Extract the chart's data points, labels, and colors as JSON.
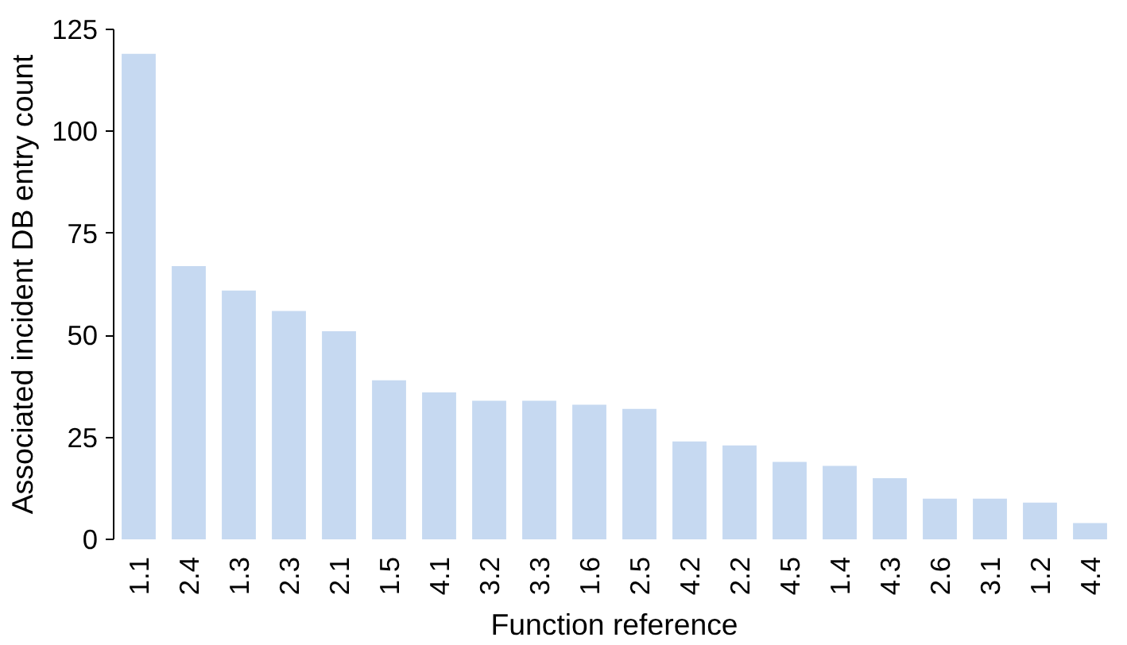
{
  "chart_data": {
    "type": "bar",
    "xlabel": "Function reference",
    "ylabel": "Associated incident DB entry count",
    "categories": [
      "1.1",
      "2.4",
      "1.3",
      "2.3",
      "2.1",
      "1.5",
      "4.1",
      "3.2",
      "3.3",
      "1.6",
      "2.5",
      "4.2",
      "2.2",
      "4.5",
      "1.4",
      "4.3",
      "2.6",
      "3.1",
      "1.2",
      "4.4"
    ],
    "values": [
      119,
      67,
      61,
      56,
      51,
      39,
      36,
      34,
      34,
      33,
      32,
      24,
      23,
      19,
      18,
      15,
      10,
      10,
      9,
      4
    ],
    "color": "#c6d9f1",
    "ylim": [
      0,
      125
    ],
    "yticks": [
      0,
      25,
      50,
      75,
      100,
      125
    ],
    "grid": false
  }
}
